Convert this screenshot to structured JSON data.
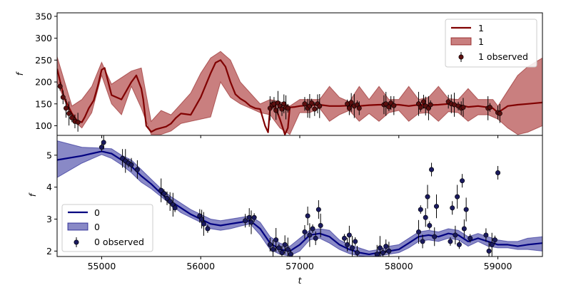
{
  "chart_data": [
    {
      "type": "line",
      "ylabel": "f",
      "xlabel": "",
      "xlim": [
        54550,
        59450
      ],
      "ylim": [
        78,
        358
      ],
      "yticks": [
        100,
        150,
        200,
        250,
        300,
        350
      ],
      "xticks": [
        55000,
        56000,
        57000,
        58000,
        59000
      ],
      "legend_position": "upper right",
      "colors": {
        "line": "#800000",
        "band": "#a52a2a",
        "marker": "#5c0f0f"
      },
      "legend": [
        "1",
        "1",
        "1 observed"
      ],
      "series": [
        {
          "name": "1",
          "kind": "model",
          "x": [
            54550,
            54620,
            54700,
            54750,
            54800,
            54830,
            54870,
            54920,
            54960,
            55000,
            55030,
            55100,
            55200,
            55300,
            55350,
            55400,
            55420,
            55450,
            55500,
            55550,
            55600,
            55650,
            55700,
            55750,
            55800,
            55900,
            56000,
            56100,
            56150,
            56200,
            56250,
            56300,
            56350,
            56400,
            56450,
            56500,
            56550,
            56600,
            56650,
            56680,
            56700,
            56750,
            56800,
            56850,
            56880,
            56900,
            56950,
            57000,
            57100,
            57200,
            57300,
            57400,
            57500,
            57600,
            57700,
            57800,
            57900,
            58000,
            58100,
            58200,
            58300,
            58400,
            58500,
            58600,
            58700,
            58800,
            58900,
            58950,
            59000,
            59100,
            59200,
            59300,
            59450
          ],
          "y": [
            230,
            165,
            128,
            112,
            108,
            120,
            140,
            158,
            190,
            228,
            232,
            170,
            160,
            200,
            215,
            185,
            160,
            100,
            86,
            92,
            95,
            98,
            105,
            118,
            128,
            125,
            165,
            220,
            244,
            250,
            235,
            200,
            172,
            162,
            155,
            145,
            140,
            138,
            100,
            85,
            140,
            145,
            115,
            80,
            95,
            142,
            143,
            145,
            147,
            148,
            145,
            145,
            146,
            145,
            147,
            148,
            148,
            148,
            145,
            148,
            147,
            148,
            150,
            148,
            143,
            145,
            142,
            140,
            130,
            145,
            148,
            150,
            153
          ],
          "band_x": [
            54550,
            54700,
            54800,
            54900,
            55000,
            55100,
            55200,
            55300,
            55400,
            55500,
            55600,
            55700,
            55800,
            55900,
            56000,
            56100,
            56200,
            56300,
            56400,
            56500,
            56600,
            56700,
            56800,
            56900,
            57000,
            57100,
            57200,
            57300,
            57400,
            57500,
            57600,
            57700,
            57800,
            57900,
            58000,
            58100,
            58200,
            58300,
            58400,
            58500,
            58600,
            58700,
            58800,
            58900,
            58950,
            59000,
            59100,
            59200,
            59300,
            59450
          ],
          "band_lo": [
            200,
            115,
            95,
            130,
            215,
            150,
            125,
            190,
            140,
            80,
            80,
            88,
            105,
            110,
            115,
            120,
            200,
            165,
            150,
            140,
            130,
            125,
            95,
            80,
            130,
            130,
            140,
            110,
            125,
            135,
            110,
            128,
            110,
            130,
            135,
            110,
            128,
            130,
            110,
            132,
            130,
            110,
            125,
            125,
            120,
            115,
            95,
            80,
            85,
            100
          ],
          "band_hi": [
            258,
            145,
            160,
            190,
            245,
            195,
            210,
            225,
            232,
            110,
            135,
            125,
            150,
            175,
            220,
            255,
            270,
            250,
            200,
            175,
            150,
            160,
            155,
            145,
            160,
            160,
            160,
            190,
            165,
            155,
            190,
            160,
            190,
            160,
            160,
            190,
            160,
            165,
            190,
            162,
            160,
            185,
            160,
            160,
            160,
            145,
            180,
            215,
            235,
            255
          ]
        },
        {
          "name": "1 observed",
          "kind": "observed",
          "x": [
            54580,
            54610,
            54640,
            54670,
            54700,
            54730,
            54760,
            56700,
            56720,
            56740,
            56760,
            56780,
            56800,
            56820,
            56840,
            56860,
            56880,
            57050,
            57080,
            57100,
            57120,
            57150,
            57180,
            57200,
            57480,
            57500,
            57520,
            57550,
            57580,
            57600,
            57850,
            57870,
            57900,
            57920,
            57950,
            58200,
            58220,
            58250,
            58270,
            58300,
            58320,
            58500,
            58530,
            58560,
            58600,
            58630,
            58650,
            58900,
            58920,
            59000,
            59020
          ],
          "y": [
            190,
            165,
            140,
            128,
            118,
            110,
            108,
            140,
            148,
            150,
            135,
            152,
            145,
            138,
            150,
            142,
            140,
            150,
            140,
            145,
            152,
            138,
            150,
            145,
            150,
            140,
            153,
            145,
            148,
            140,
            148,
            150,
            143,
            152,
            146,
            150,
            142,
            155,
            145,
            140,
            148,
            155,
            150,
            148,
            145,
            140,
            142,
            140,
            142,
            130,
            128
          ]
        }
      ]
    },
    {
      "type": "line",
      "ylabel": "f",
      "xlabel": "t",
      "xlim": [
        54550,
        59450
      ],
      "ylim": [
        1.83,
        5.62
      ],
      "yticks": [
        2,
        3,
        4,
        5
      ],
      "xticks": [
        55000,
        56000,
        57000,
        58000,
        59000
      ],
      "legend_position": "lower left",
      "colors": {
        "line": "#000080",
        "band": "#3a3aa0",
        "marker": "#1a1a5e"
      },
      "legend": [
        "0",
        "0",
        "0 observed"
      ],
      "series": [
        {
          "name": "0",
          "kind": "model",
          "x": [
            54550,
            54800,
            55000,
            55100,
            55200,
            55300,
            55400,
            55500,
            55600,
            55700,
            55800,
            55900,
            56000,
            56100,
            56200,
            56300,
            56400,
            56500,
            56600,
            56700,
            56800,
            56900,
            57000,
            57100,
            57200,
            57300,
            57400,
            57500,
            57600,
            57700,
            57800,
            57900,
            58000,
            58100,
            58200,
            58300,
            58400,
            58500,
            58600,
            58700,
            58800,
            58900,
            59000,
            59100,
            59200,
            59300,
            59450
          ],
          "y": [
            4.85,
            4.98,
            5.12,
            5.05,
            4.85,
            4.65,
            4.35,
            4.1,
            3.8,
            3.55,
            3.35,
            3.15,
            3.0,
            2.85,
            2.8,
            2.85,
            2.9,
            2.95,
            2.7,
            2.25,
            2.05,
            2.0,
            2.2,
            2.5,
            2.55,
            2.45,
            2.2,
            2.05,
            1.95,
            1.9,
            1.95,
            2.0,
            2.05,
            2.25,
            2.45,
            2.5,
            2.45,
            2.55,
            2.5,
            2.3,
            2.4,
            2.3,
            2.2,
            2.2,
            2.15,
            2.2,
            2.25
          ],
          "band_x": [
            54550,
            54800,
            55000,
            55100,
            55200,
            55300,
            55400,
            55500,
            55600,
            55700,
            55800,
            55900,
            56000,
            56100,
            56200,
            56300,
            56400,
            56500,
            56600,
            56700,
            56800,
            56900,
            57000,
            57100,
            57200,
            57300,
            57400,
            57500,
            57600,
            57700,
            57800,
            57900,
            58000,
            58100,
            58200,
            58300,
            58400,
            58500,
            58600,
            58700,
            58800,
            58900,
            59000,
            59100,
            59200,
            59300,
            59450
          ],
          "band_lo": [
            4.3,
            4.75,
            5.02,
            4.9,
            4.7,
            4.45,
            4.15,
            3.95,
            3.7,
            3.45,
            3.2,
            3.05,
            2.9,
            2.7,
            2.65,
            2.7,
            2.78,
            2.85,
            2.5,
            2.05,
            1.9,
            1.85,
            2.0,
            2.35,
            2.4,
            2.25,
            2.05,
            1.92,
            1.85,
            1.82,
            1.85,
            1.9,
            1.95,
            2.1,
            2.3,
            2.35,
            2.3,
            2.4,
            2.35,
            2.15,
            2.3,
            2.15,
            2.1,
            2.1,
            2.05,
            2.05,
            2.0
          ],
          "band_hi": [
            5.45,
            5.25,
            5.22,
            5.2,
            5.0,
            4.85,
            4.55,
            4.25,
            3.95,
            3.7,
            3.5,
            3.3,
            3.15,
            3.0,
            2.95,
            3.0,
            3.05,
            3.1,
            2.9,
            2.45,
            2.25,
            2.15,
            2.4,
            2.65,
            2.7,
            2.65,
            2.35,
            2.2,
            2.1,
            2.0,
            2.05,
            2.15,
            2.2,
            2.4,
            2.6,
            2.65,
            2.6,
            2.7,
            2.65,
            2.45,
            2.55,
            2.45,
            2.35,
            2.3,
            2.3,
            2.4,
            2.45
          ]
        },
        {
          "name": "0 observed",
          "kind": "observed",
          "x": [
            55000,
            55020,
            55210,
            55240,
            55270,
            55300,
            55360,
            55600,
            55630,
            55660,
            55690,
            55720,
            55740,
            55990,
            56010,
            56030,
            56070,
            56450,
            56490,
            56510,
            56540,
            56700,
            56730,
            56760,
            56790,
            56820,
            56850,
            56880,
            56910,
            57050,
            57080,
            57100,
            57130,
            57160,
            57190,
            57210,
            57450,
            57480,
            57500,
            57530,
            57560,
            57580,
            57780,
            57810,
            57840,
            57870,
            57900,
            58200,
            58220,
            58240,
            58270,
            58290,
            58310,
            58330,
            58360,
            58380,
            58520,
            58540,
            58570,
            58590,
            58610,
            58640,
            58660,
            58680,
            58720,
            58880,
            58910,
            58940,
            58970,
            59000
          ],
          "y": [
            5.25,
            5.4,
            4.9,
            4.82,
            4.75,
            4.7,
            4.55,
            3.9,
            3.8,
            3.65,
            3.55,
            3.45,
            3.35,
            3.1,
            3.0,
            2.85,
            2.7,
            2.95,
            3.05,
            2.9,
            3.05,
            2.2,
            2.05,
            2.35,
            2.1,
            1.95,
            2.2,
            2.05,
            1.9,
            2.6,
            3.1,
            2.5,
            2.7,
            2.4,
            3.3,
            2.8,
            2.4,
            2.2,
            2.5,
            2.1,
            2.3,
            1.95,
            1.9,
            2.1,
            1.95,
            2.15,
            2.0,
            2.6,
            3.3,
            2.3,
            3.05,
            3.7,
            2.8,
            4.55,
            2.45,
            3.4,
            2.3,
            3.35,
            2.5,
            3.7,
            2.2,
            4.2,
            2.7,
            3.3,
            2.4,
            2.5,
            2.0,
            2.2,
            2.35,
            4.45
          ]
        }
      ]
    }
  ]
}
